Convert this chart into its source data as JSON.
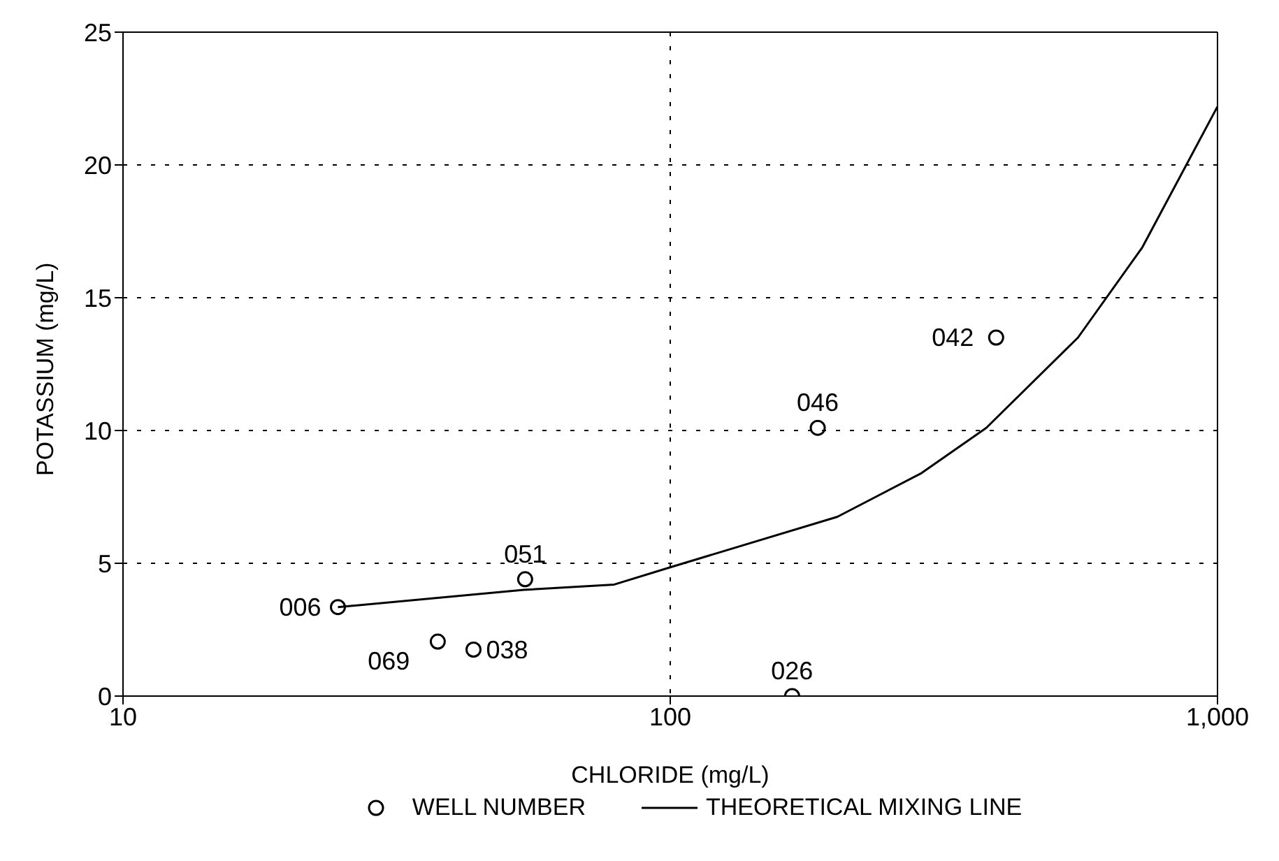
{
  "chart_data": {
    "type": "scatter",
    "xlabel": "CHLORIDE (mg/L)",
    "ylabel": "POTASSIUM (mg/L)",
    "log": "x",
    "xlim": [
      10,
      1000
    ],
    "xticks": [
      10,
      100,
      {
        "value": 1000,
        "label": "1,000"
      }
    ],
    "ylim": [
      0,
      25
    ],
    "yticks": [
      0,
      5,
      10,
      15,
      20,
      25
    ],
    "grid": true,
    "legend": "bottom",
    "series": [
      {
        "name": "WELL NUMBER",
        "color": "#000000",
        "marker": "circle",
        "x": [
          24.7,
          37.6,
          43.7,
          54.3,
          167,
          186,
          394
        ],
        "values": [
          3.35,
          2.05,
          1.75,
          4.4,
          0,
          10.1,
          13.5
        ]
      },
      {
        "name": "THEORETICAL MIXING LINE",
        "type": "line",
        "color": "#000000",
        "marker": "none",
        "line_style": "solid",
        "x": [
          24.7,
          54,
          79,
          100,
          202,
          288,
          378,
          556,
          729,
          1000
        ],
        "values": [
          3.35,
          4.0,
          4.2,
          4.85,
          6.75,
          8.4,
          10.1,
          13.5,
          16.9,
          22.2
        ]
      }
    ],
    "annotations": [
      {
        "text": "006",
        "x": 24.7,
        "y": 3.35
      },
      {
        "text": "069",
        "x": 37.6,
        "y": 2.05
      },
      {
        "text": "038",
        "x": 43.7,
        "y": 1.75
      },
      {
        "text": "051",
        "x": 54.3,
        "y": 4.4
      },
      {
        "text": "026",
        "x": 167,
        "y": 0
      },
      {
        "text": "046",
        "x": 186,
        "y": 10.1
      },
      {
        "text": "042",
        "x": 394,
        "y": 13.5
      }
    ]
  }
}
